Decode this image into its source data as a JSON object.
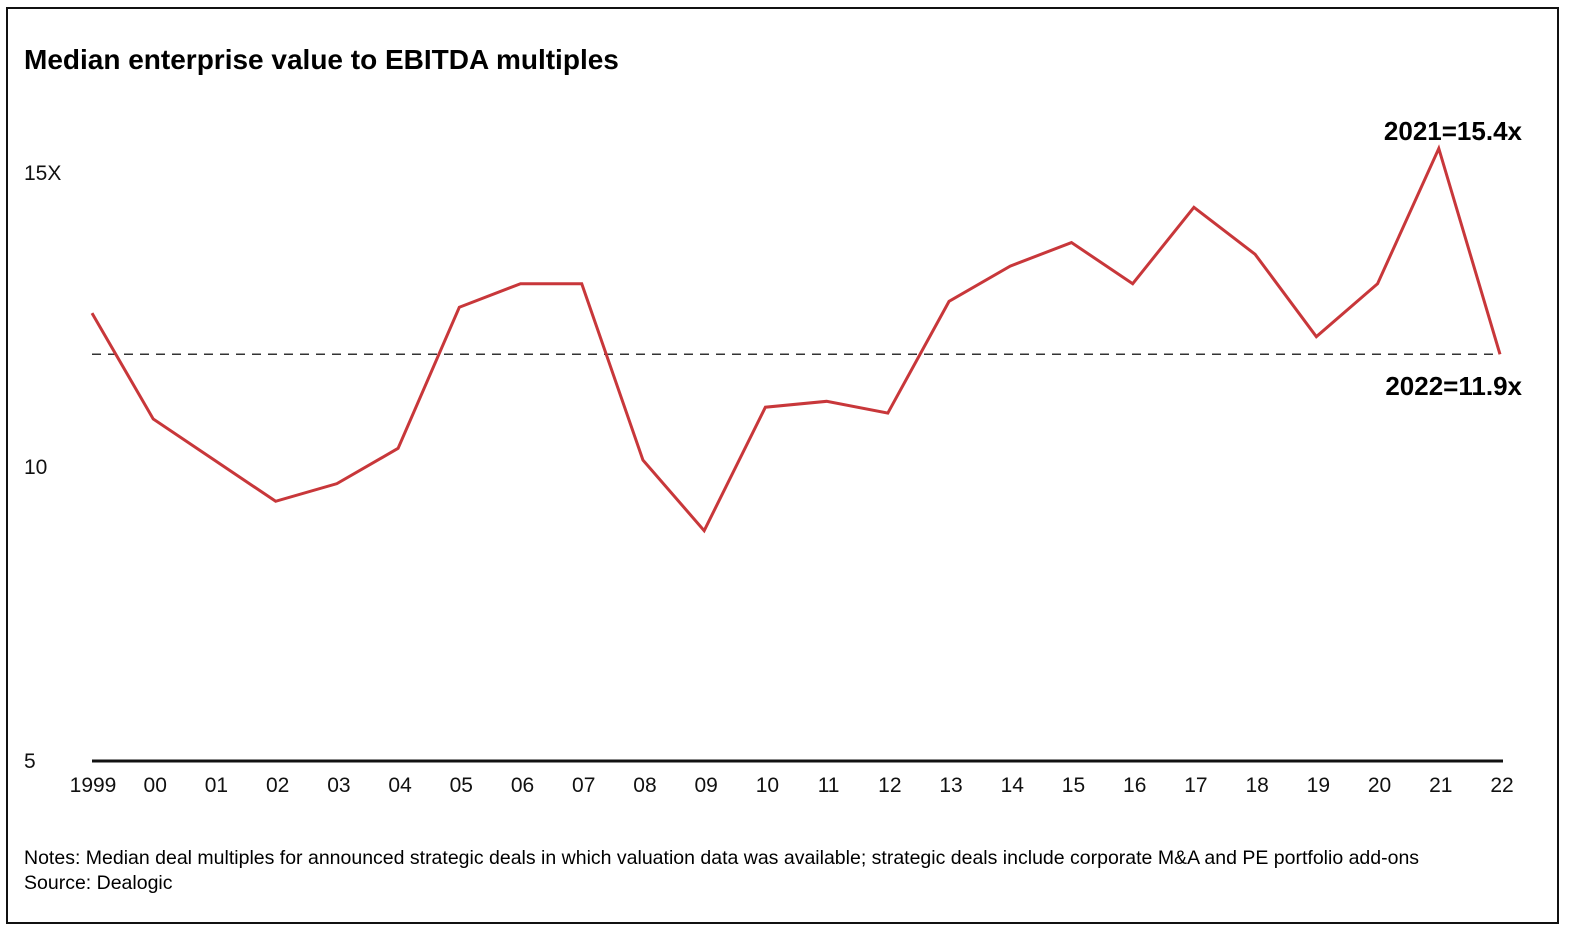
{
  "chart_data": {
    "type": "line",
    "title": "Median enterprise value to EBITDA multiples",
    "categories": [
      "1999",
      "00",
      "01",
      "02",
      "03",
      "04",
      "05",
      "06",
      "07",
      "08",
      "09",
      "10",
      "11",
      "12",
      "13",
      "14",
      "15",
      "16",
      "17",
      "18",
      "19",
      "20",
      "21",
      "22"
    ],
    "series": [
      {
        "values": [
          12.6,
          10.8,
          10.1,
          9.4,
          9.7,
          10.3,
          12.7,
          13.1,
          13.1,
          10.1,
          8.9,
          11.0,
          11.1,
          10.9,
          12.8,
          13.4,
          13.8,
          13.1,
          14.4,
          13.6,
          12.2,
          13.1,
          15.4,
          11.9
        ]
      }
    ],
    "y_ticks": [
      "5",
      "10",
      "15X"
    ],
    "ylim": [
      5,
      15.4
    ],
    "reference_line": {
      "value": 11.9,
      "style": "dashed"
    },
    "annotations": [
      {
        "label": "2021=15.4x",
        "year": "21",
        "value": 15.4
      },
      {
        "label": "2022=11.9x",
        "year": "22",
        "value": 11.9
      }
    ],
    "xlabel": "",
    "ylabel": "",
    "grid": false,
    "line_color": "#c8373a"
  },
  "notes": {
    "line1": "Notes: Median deal multiples for announced strategic deals in which valuation data was available; strategic deals include corporate M&A and PE portfolio add-ons",
    "line2": "Source: Dealogic"
  }
}
